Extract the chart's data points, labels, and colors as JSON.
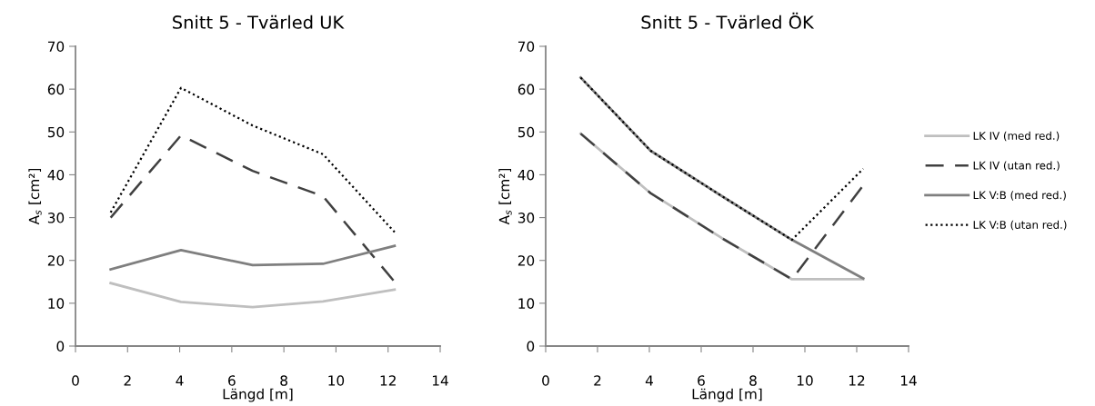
{
  "chart_data": [
    {
      "type": "line",
      "title": "Snitt 5 - Tvärled UK",
      "xlabel": "Längd [m]",
      "ylabel": "A$_{s}$ [cm²]",
      "xlim": [
        0,
        14
      ],
      "xticks": [
        0,
        2,
        4,
        6,
        8,
        10,
        12,
        14
      ],
      "ylim": [
        0,
        70
      ],
      "yticks": [
        0,
        10,
        20,
        30,
        40,
        50,
        60,
        70
      ],
      "x": [
        1.35,
        4.05,
        6.8,
        9.5,
        12.25
      ],
      "legend": false,
      "series": [
        {
          "color": "#bfbfbf",
          "line_style": "solid",
          "values": [
            14.7,
            10.3,
            9.1,
            10.4,
            13.2
          ]
        },
        {
          "color": "#404040",
          "line_style": "dashed",
          "values": [
            30,
            49.2,
            40.9,
            35,
            15
          ]
        },
        {
          "color": "#7f7f7f",
          "line_style": "solid",
          "values": [
            17.9,
            22.4,
            18.9,
            19.2,
            23.4
          ]
        },
        {
          "color": "#000000",
          "line_style": "dotted",
          "values": [
            31.2,
            60.3,
            51.5,
            44.8,
            26.6
          ]
        }
      ]
    },
    {
      "type": "line",
      "title": "Snitt 5 - Tvärled ÖK",
      "xlabel": "Längd [m]",
      "ylabel": "A$_{s}$ [cm²]",
      "xlim": [
        0,
        14
      ],
      "xticks": [
        0,
        2,
        4,
        6,
        8,
        10,
        12,
        14
      ],
      "ylim": [
        0,
        70
      ],
      "yticks": [
        0,
        10,
        20,
        30,
        40,
        50,
        60,
        70
      ],
      "x": [
        1.35,
        4.05,
        6.8,
        9.5,
        12.25
      ],
      "legend": "right",
      "series": [
        {
          "name": "LK IV (med red.)",
          "color": "#bfbfbf",
          "line_style": "solid",
          "values": [
            49.6,
            35.7,
            25.2,
            15.6,
            15.6
          ]
        },
        {
          "name": "LK IV (utan red.)",
          "color": "#404040",
          "line_style": "dashed",
          "values": [
            49.6,
            35.7,
            25.2,
            15.6,
            37.5
          ]
        },
        {
          "name": "LK V:B (med red.)",
          "color": "#7f7f7f",
          "line_style": "solid",
          "values": [
            62.7,
            45.6,
            35,
            24.8,
            15.8
          ]
        },
        {
          "name": "LK V:B (utan red.)",
          "color": "#000000",
          "line_style": "dotted",
          "values": [
            62.7,
            45.6,
            35,
            24.8,
            41.4
          ]
        }
      ]
    }
  ]
}
